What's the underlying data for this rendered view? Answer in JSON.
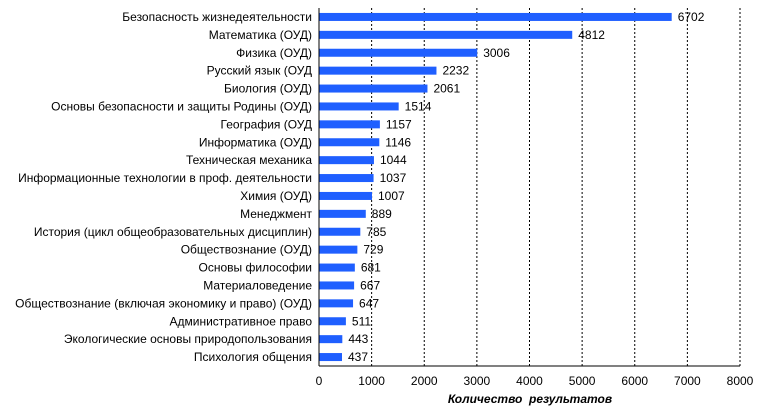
{
  "chart_data": {
    "type": "bar",
    "orientation": "horizontal",
    "title": "",
    "xlabel": "Количество  результатов",
    "ylabel": "",
    "xlim": [
      0,
      8000
    ],
    "xticks": [
      0,
      1000,
      2000,
      3000,
      4000,
      5000,
      6000,
      7000,
      8000
    ],
    "grid": "vertical dashed",
    "bar_color": "#1f5fff",
    "categories": [
      "Безопасность жизнедеятельности",
      "Математика (ОУД)",
      "Физика (ОУД)",
      "Русский язык (ОУД",
      "Биология (ОУД)",
      "Основы безопасности и защиты Родины (ОУД)",
      "География (ОУД",
      "Информатика (ОУД)",
      "Техническая механика",
      "Информационные технологии в проф. деятельности",
      "Химия (ОУД)",
      "Менеджмент",
      "История (цикл общеобразовательных дисциплин)",
      "Обществознание (ОУД)",
      "Основы философии",
      "Материаловедение",
      "Обществознание (включая экономику и право) (ОУД)",
      "Административное право",
      "Экологические основы природопользования",
      "Психология общения"
    ],
    "values": [
      6702,
      4812,
      3006,
      2232,
      2061,
      1514,
      1157,
      1146,
      1044,
      1037,
      1007,
      889,
      785,
      729,
      681,
      667,
      647,
      511,
      443,
      437
    ]
  }
}
